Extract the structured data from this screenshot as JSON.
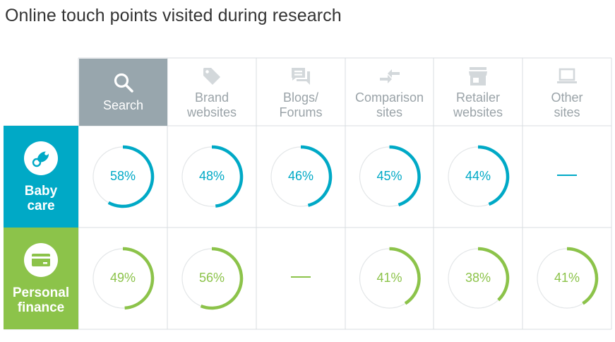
{
  "title": "Online touch points visited during research",
  "colors": {
    "baby": "#00a9c6",
    "finance": "#8cc34a",
    "header_active": "#98a6ad",
    "header_text": "#9aa3a8",
    "grid": "#d9dde0",
    "track": "#e3e6e8"
  },
  "columns": [
    {
      "key": "search",
      "lines": [
        "Search"
      ],
      "icon": "search-icon"
    },
    {
      "key": "brand",
      "lines": [
        "Brand",
        "websites"
      ],
      "icon": "tag-icon"
    },
    {
      "key": "blogs",
      "lines": [
        "Blogs/",
        "Forums"
      ],
      "icon": "chat-bubbles-icon"
    },
    {
      "key": "comparison",
      "lines": [
        "Comparison",
        "sites"
      ],
      "icon": "compare-arrows-icon"
    },
    {
      "key": "retailer",
      "lines": [
        "Retailer",
        "websites"
      ],
      "icon": "store-icon"
    },
    {
      "key": "other",
      "lines": [
        "Other",
        "sites"
      ],
      "icon": "laptop-icon"
    }
  ],
  "chart_data": {
    "type": "table",
    "rows": [
      {
        "name": "Baby care",
        "lines": [
          "Baby",
          "care"
        ],
        "icon": "pacifier-icon",
        "values": [
          58,
          48,
          46,
          45,
          44,
          null
        ],
        "labels": [
          "58%",
          "48%",
          "46%",
          "45%",
          "44%",
          "—"
        ]
      },
      {
        "name": "Personal finance",
        "lines": [
          "Personal",
          "finance"
        ],
        "icon": "credit-card-icon",
        "values": [
          49,
          56,
          null,
          41,
          38,
          41
        ],
        "labels": [
          "49%",
          "56%",
          "—",
          "41%",
          "38%",
          "41%"
        ]
      }
    ]
  }
}
